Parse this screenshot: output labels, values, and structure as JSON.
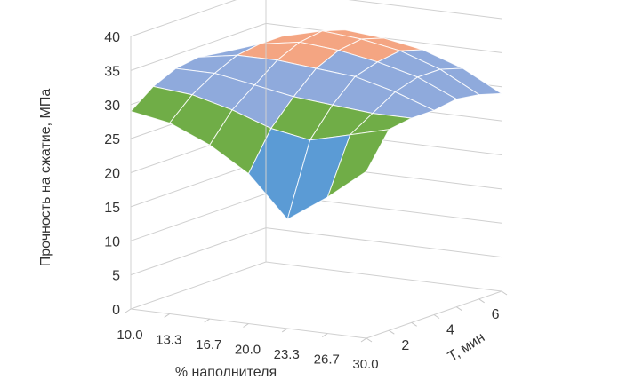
{
  "chart_data": {
    "type": "surface",
    "title": "",
    "zlabel": "Прочность на сжатие, МПа",
    "xlabel": "% наполнителя",
    "ylabel": "T, мин",
    "zlim": [
      0,
      40
    ],
    "z_ticks": [
      "0",
      "5",
      "10",
      "15",
      "20",
      "25",
      "30",
      "35",
      "40"
    ],
    "x_ticks": [
      "10.0",
      "13.3",
      "16.7",
      "20.0",
      "23.3",
      "26.7",
      "30.0"
    ],
    "y_ticks": [
      "2",
      "4",
      "6"
    ],
    "x": [
      10.0,
      13.3,
      16.7,
      20.0,
      23.3,
      26.7,
      30.0
    ],
    "y": [
      1,
      2,
      3,
      4,
      5,
      6,
      7
    ],
    "z": [
      [
        29.0,
        28.0,
        25.5,
        22.0,
        16.0,
        20.0,
        24.5
      ],
      [
        31.5,
        31.0,
        29.5,
        27.5,
        26.5,
        28.0,
        29.5
      ],
      [
        33.0,
        33.0,
        32.0,
        31.0,
        30.5,
        30.0,
        30.0
      ],
      [
        33.5,
        34.5,
        34.5,
        34.0,
        33.5,
        32.0,
        30.0
      ],
      [
        33.0,
        35.0,
        36.0,
        35.5,
        34.5,
        33.0,
        30.5
      ],
      [
        32.0,
        35.0,
        36.5,
        36.0,
        35.0,
        33.0,
        30.0
      ],
      [
        30.0,
        33.5,
        35.5,
        35.0,
        34.0,
        32.0,
        29.0
      ]
    ],
    "bands": [
      {
        "range": [
          15,
          20
        ],
        "color": "#5b9bd5"
      },
      {
        "range": [
          20,
          25
        ],
        "color": "#5b9bd5"
      },
      {
        "range": [
          25,
          30
        ],
        "color": "#70ad47"
      },
      {
        "range": [
          30,
          35
        ],
        "color": "#8faadc"
      },
      {
        "range": [
          35,
          40
        ],
        "color": "#f4a582"
      }
    ],
    "grid": true,
    "legend": "none"
  }
}
